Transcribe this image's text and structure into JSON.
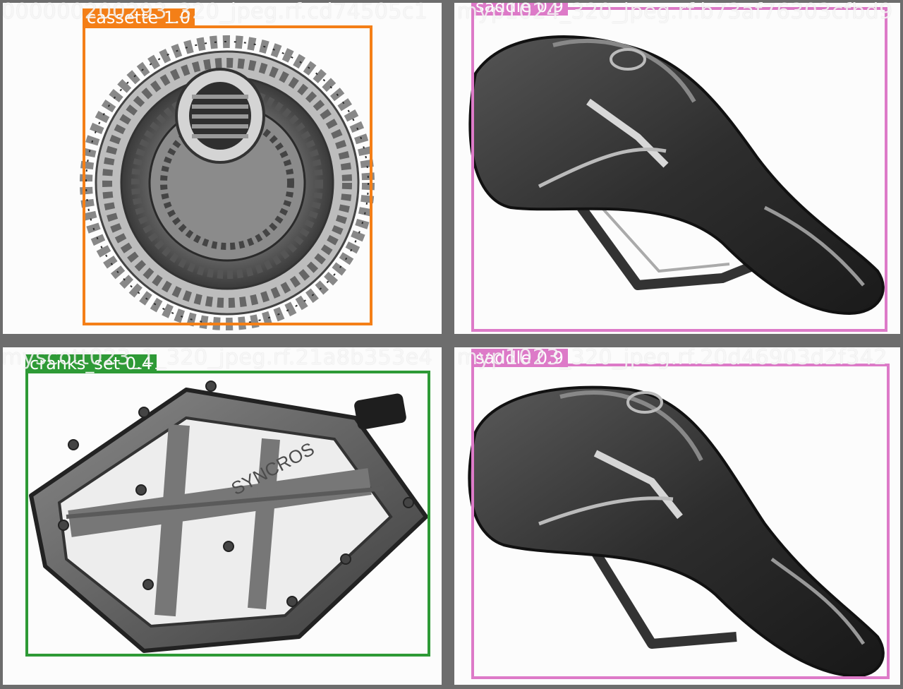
{
  "tiles": [
    {
      "filename": "000000200293_320_jpeg.rf.cd74505c1",
      "object": "cassette",
      "detection": {
        "label": "cassette 1.0",
        "class": "cassette",
        "confidence": 1.0,
        "color": "#f47f17"
      }
    },
    {
      "filename": "myp1024_320_jpeg.rf.b73af76303cfbd9",
      "object": "saddle",
      "detection": {
        "label": "saddle 0.9",
        "class": "saddle",
        "confidence": 0.9,
        "color": "#dd7ac8"
      }
    },
    {
      "filename": "myscott023_1_320_jpeg.rf.21a8b353e4",
      "object": "pedal",
      "detection": {
        "label": "cranks_set 0.4",
        "class": "cranks_set",
        "confidence": 0.4,
        "color": "#2e9a36"
      }
    },
    {
      "filename": "myp1023_320_jpeg.rf.20d46903d2f342",
      "object": "saddle",
      "detection": {
        "label": "saddle 0.9",
        "class": "saddle",
        "confidence": 0.9,
        "color": "#dd7ac8"
      }
    }
  ],
  "colors": {
    "grid_background": "#6d6d6d",
    "tile_background": "#fcfcfc"
  }
}
